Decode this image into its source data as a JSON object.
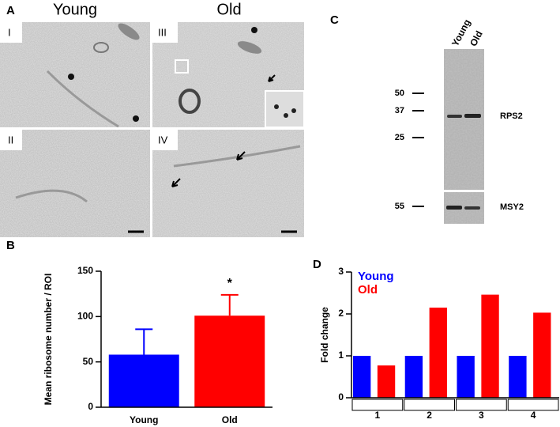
{
  "panel_a": {
    "label": "A",
    "columns": [
      "Young",
      "Old"
    ],
    "images": [
      "I",
      "II",
      "III",
      "IV"
    ]
  },
  "panel_c": {
    "label": "C",
    "lanes": [
      "Young",
      "Old"
    ],
    "markers": [
      "50",
      "37",
      "25",
      "55"
    ],
    "bands": [
      "RPS2",
      "MSY2"
    ]
  },
  "chart_data": [
    {
      "type": "bar",
      "panel_label": "B",
      "y_label": "Mean ribosome number / ROI",
      "categories": [
        "Young",
        "Old"
      ],
      "values": [
        58,
        101
      ],
      "errors": [
        28,
        23
      ],
      "colors": [
        "#0000ff",
        "#ff0000"
      ],
      "annotation": "*",
      "ylim": [
        0,
        150
      ],
      "yticks": [
        0,
        50,
        100,
        150
      ]
    },
    {
      "type": "grouped_bar",
      "panel_label": "D",
      "y_label": "Fold change",
      "categories": [
        "1",
        "2",
        "3",
        "4"
      ],
      "series": [
        {
          "name": "Young",
          "color": "#0000ff",
          "values": [
            1,
            1,
            1,
            1
          ]
        },
        {
          "name": "Old",
          "color": "#ff0000",
          "values": [
            0.77,
            2.15,
            2.46,
            2.03
          ]
        }
      ],
      "ylim": [
        0,
        3
      ],
      "yticks": [
        0,
        1,
        2,
        3
      ],
      "legend": "upper left"
    }
  ]
}
